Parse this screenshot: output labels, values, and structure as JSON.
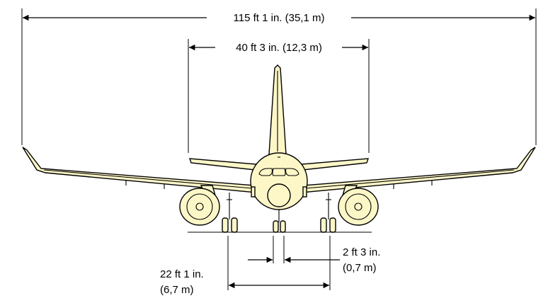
{
  "dimensions": {
    "wingspan": "115 ft 1 in. (35,1 m)",
    "tailspan": "40 ft 3 in. (12,3 m)",
    "nose_gear_track_line1": "2 ft 3 in.",
    "nose_gear_track_line2": "(0,7 m)",
    "main_gear_track_line1": "22 ft 1 in.",
    "main_gear_track_line2": "(6,7 m)"
  },
  "colors": {
    "aircraft_fill": "#fdf7c8",
    "outline": "#000000"
  }
}
